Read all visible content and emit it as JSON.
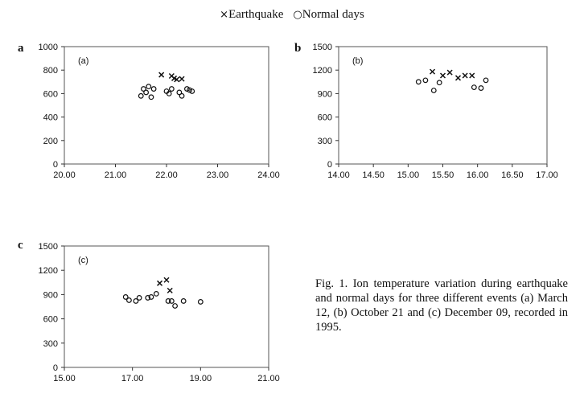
{
  "legend": {
    "earthquake_symbol": "×",
    "earthquake_label": "Earthquake",
    "normal_symbol": "○",
    "normal_label": "Normal days"
  },
  "panels": [
    {
      "letter": "a",
      "inner_label": "(a)"
    },
    {
      "letter": "b",
      "inner_label": "(b)"
    },
    {
      "letter": "c",
      "inner_label": "(c)"
    }
  ],
  "caption": "Fig. 1. Ion temperature variation during earthquake and normal days for three different events (a) March 12, (b) October 21 and (c) December 09, recorded in 1995.",
  "chart_data": [
    {
      "type": "scatter",
      "title": "",
      "xlabel": "",
      "ylabel": "",
      "xlim": [
        20,
        24
      ],
      "ylim": [
        0,
        1000
      ],
      "xticks": [
        "20.00",
        "21.00",
        "22.00",
        "23.00",
        "24.00"
      ],
      "yticks": [
        "0",
        "200",
        "400",
        "600",
        "800",
        "1000"
      ],
      "grid": false,
      "series": [
        {
          "name": "Earthquake",
          "marker": "x",
          "points": [
            [
              21.9,
              760
            ],
            [
              22.1,
              750
            ],
            [
              22.15,
              730
            ],
            [
              22.2,
              720
            ],
            [
              22.3,
              725
            ]
          ]
        },
        {
          "name": "Normal days",
          "marker": "o",
          "points": [
            [
              21.5,
              580
            ],
            [
              21.55,
              640
            ],
            [
              21.6,
              610
            ],
            [
              21.65,
              660
            ],
            [
              21.7,
              570
            ],
            [
              21.75,
              640
            ],
            [
              22.0,
              620
            ],
            [
              22.05,
              600
            ],
            [
              22.1,
              640
            ],
            [
              22.25,
              610
            ],
            [
              22.3,
              580
            ],
            [
              22.4,
              640
            ],
            [
              22.45,
              630
            ],
            [
              22.5,
              620
            ]
          ]
        }
      ]
    },
    {
      "type": "scatter",
      "title": "",
      "xlabel": "",
      "ylabel": "",
      "xlim": [
        14,
        17
      ],
      "ylim": [
        0,
        1500
      ],
      "xticks": [
        "14.00",
        "14.50",
        "15.00",
        "15.50",
        "16.00",
        "16.50",
        "17.00"
      ],
      "yticks": [
        "0",
        "300",
        "600",
        "900",
        "1200",
        "1500"
      ],
      "grid": false,
      "series": [
        {
          "name": "Earthquake",
          "marker": "x",
          "points": [
            [
              15.35,
              1180
            ],
            [
              15.5,
              1130
            ],
            [
              15.6,
              1170
            ],
            [
              15.72,
              1100
            ],
            [
              15.82,
              1130
            ],
            [
              15.92,
              1130
            ]
          ]
        },
        {
          "name": "Normal days",
          "marker": "o",
          "points": [
            [
              15.15,
              1050
            ],
            [
              15.25,
              1070
            ],
            [
              15.37,
              940
            ],
            [
              15.45,
              1040
            ],
            [
              15.95,
              980
            ],
            [
              16.05,
              970
            ],
            [
              16.12,
              1070
            ]
          ]
        }
      ]
    },
    {
      "type": "scatter",
      "title": "",
      "xlabel": "",
      "ylabel": "",
      "xlim": [
        15,
        21
      ],
      "ylim": [
        0,
        1500
      ],
      "xticks": [
        "15.00",
        "17.00",
        "19.00",
        "21.00"
      ],
      "yticks": [
        "0",
        "300",
        "600",
        "900",
        "1200",
        "1500"
      ],
      "grid": false,
      "series": [
        {
          "name": "Earthquake",
          "marker": "x",
          "points": [
            [
              17.8,
              1040
            ],
            [
              18.0,
              1080
            ],
            [
              18.1,
              950
            ]
          ]
        },
        {
          "name": "Normal days",
          "marker": "o",
          "points": [
            [
              16.8,
              870
            ],
            [
              16.9,
              830
            ],
            [
              17.1,
              820
            ],
            [
              17.2,
              860
            ],
            [
              17.45,
              860
            ],
            [
              17.55,
              870
            ],
            [
              17.7,
              910
            ],
            [
              18.05,
              820
            ],
            [
              18.15,
              820
            ],
            [
              18.25,
              760
            ],
            [
              18.5,
              820
            ],
            [
              19.0,
              810
            ]
          ]
        }
      ]
    }
  ]
}
